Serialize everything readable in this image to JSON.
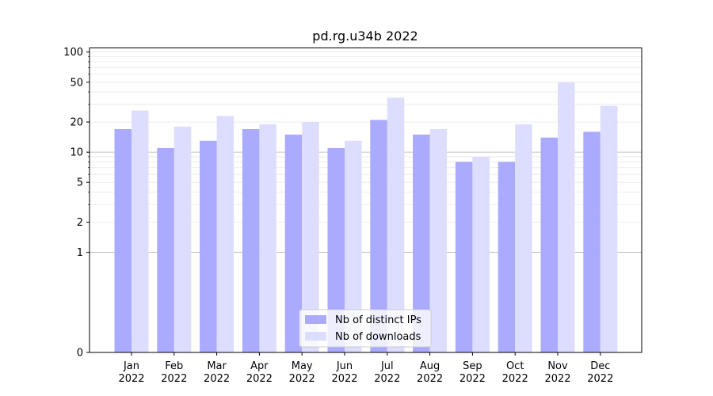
{
  "chart_data": {
    "type": "bar",
    "title": "pd.rg.u34b 2022",
    "xlabel": "",
    "ylabel": "",
    "yscale": "symlog",
    "ylim": [
      0,
      110
    ],
    "yticks": [
      0,
      1,
      2,
      5,
      10,
      20,
      50,
      100
    ],
    "ytick_labels": [
      "0",
      "1",
      "2",
      "5",
      "10",
      "20",
      "50",
      "100"
    ],
    "grid": true,
    "legend_placement": "bottom-center",
    "categories": [
      {
        "month": "Jan",
        "year": "2022"
      },
      {
        "month": "Feb",
        "year": "2022"
      },
      {
        "month": "Mar",
        "year": "2022"
      },
      {
        "month": "Apr",
        "year": "2022"
      },
      {
        "month": "May",
        "year": "2022"
      },
      {
        "month": "Jun",
        "year": "2022"
      },
      {
        "month": "Jul",
        "year": "2022"
      },
      {
        "month": "Aug",
        "year": "2022"
      },
      {
        "month": "Sep",
        "year": "2022"
      },
      {
        "month": "Oct",
        "year": "2022"
      },
      {
        "month": "Nov",
        "year": "2022"
      },
      {
        "month": "Dec",
        "year": "2022"
      }
    ],
    "series": [
      {
        "name": "Nb of distinct IPs",
        "color": "#aaaaff",
        "values": [
          17,
          11,
          13,
          17,
          15,
          11,
          21,
          15,
          8,
          8,
          14,
          16
        ]
      },
      {
        "name": "Nb of downloads",
        "color": "#ddddff",
        "values": [
          26,
          18,
          23,
          19,
          20,
          13,
          35,
          17,
          9,
          19,
          50,
          29
        ]
      }
    ]
  }
}
